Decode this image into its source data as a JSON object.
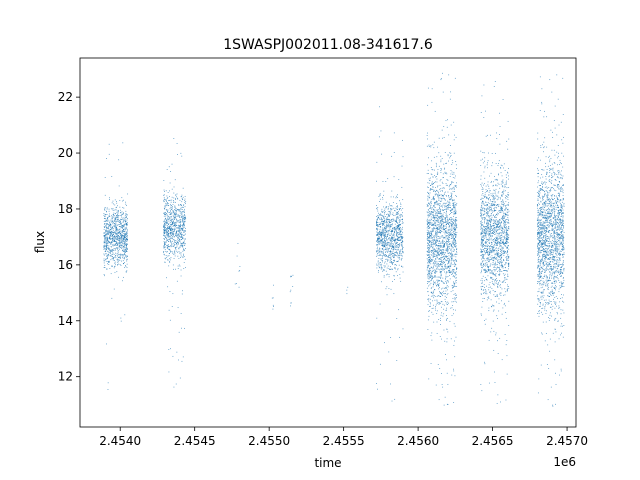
{
  "chart_data": {
    "type": "scatter",
    "title": "1SWASPJ002011.08-341617.6",
    "xlabel": "time",
    "ylabel": "flux",
    "x_offset_label": "1e6",
    "xlim": [
      2453730,
      2457060
    ],
    "ylim": [
      10.2,
      23.4
    ],
    "x_ticks": [
      2453900,
      2454000,
      2454500,
      2455000,
      2455100,
      2455500,
      2456000,
      2456500,
      2457000
    ],
    "x_tick_labels": [
      "",
      "2.4540",
      "2.4545",
      "2.4550",
      "",
      "2.4555",
      "2.4560",
      "2.4565",
      "2.4570"
    ],
    "y_ticks": [
      12,
      14,
      16,
      18,
      20,
      22
    ],
    "y_tick_labels": [
      "12",
      "14",
      "16",
      "18",
      "20",
      "22"
    ],
    "grid": false,
    "marker_color": "#1f77b4",
    "series": [
      {
        "clusters": [
          {
            "x_range": [
              2453890,
              2454050
            ],
            "y_center": 17.0,
            "y_spread": 0.55,
            "count": 900,
            "y_min": 11.2,
            "y_max": 20.6
          },
          {
            "x_range": [
              2454290,
              2454440
            ],
            "y_center": 17.3,
            "y_spread": 0.6,
            "count": 800,
            "y_min": 11.6,
            "y_max": 20.8
          },
          {
            "x_range": [
              2454770,
              2454810
            ],
            "y_center": 16.2,
            "y_spread": 0.5,
            "count": 8,
            "y_min": 15.2,
            "y_max": 17.1
          },
          {
            "x_range": [
              2455020,
              2455030
            ],
            "y_center": 14.9,
            "y_spread": 0.3,
            "count": 6,
            "y_min": 14.3,
            "y_max": 15.3
          },
          {
            "x_range": [
              2455140,
              2455160
            ],
            "y_center": 15.3,
            "y_spread": 0.5,
            "count": 10,
            "y_min": 14.0,
            "y_max": 16.1
          },
          {
            "x_range": [
              2455520,
              2455530
            ],
            "y_center": 14.9,
            "y_spread": 0.2,
            "count": 3,
            "y_min": 14.7,
            "y_max": 15.2
          },
          {
            "x_range": [
              2455720,
              2455900
            ],
            "y_center": 17.0,
            "y_spread": 0.6,
            "count": 1000,
            "y_min": 11.0,
            "y_max": 21.9
          },
          {
            "x_range": [
              2456060,
              2456260
            ],
            "y_center": 17.0,
            "y_spread": 1.3,
            "count": 1800,
            "y_min": 10.8,
            "y_max": 23.0
          },
          {
            "x_range": [
              2456420,
              2456610
            ],
            "y_center": 17.0,
            "y_spread": 1.1,
            "count": 1500,
            "y_min": 10.9,
            "y_max": 22.7
          },
          {
            "x_range": [
              2456800,
              2456980
            ],
            "y_center": 17.0,
            "y_spread": 1.3,
            "count": 1700,
            "y_min": 10.8,
            "y_max": 23.0
          }
        ]
      }
    ]
  }
}
